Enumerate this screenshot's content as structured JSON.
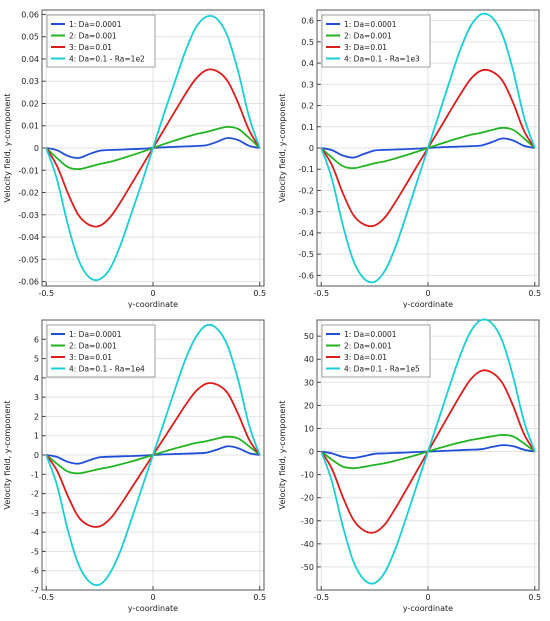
{
  "chart_data": [
    {
      "type": "line",
      "xlabel": "y-coordinate",
      "ylabel": "Velocity field, y-component",
      "xlim": [
        -0.52,
        0.52
      ],
      "ylim": [
        -0.062,
        0.062
      ],
      "xticks": [
        "-0.5",
        "0",
        "0.5"
      ],
      "yticks": [
        "0.06",
        "0.05",
        "0.04",
        "0.03",
        "0.02",
        "0.01",
        "0",
        "-0.01",
        "-0.02",
        "-0.03",
        "-0.04",
        "-0.05",
        "-0.06"
      ],
      "legend_position": "top-left",
      "grid": true,
      "series": [
        {
          "name": "1: Da=0.0001",
          "color": "#1f4fd8",
          "x": [
            -0.5,
            -0.45,
            -0.4,
            -0.35,
            -0.3,
            -0.25,
            -0.2,
            -0.15,
            -0.1,
            -0.05,
            0,
            0.05,
            0.1,
            0.15,
            0.2,
            0.25,
            0.3,
            0.35,
            0.4,
            0.45,
            0.5
          ],
          "y": [
            0,
            -0.001,
            -0.0035,
            -0.0045,
            -0.0028,
            -0.0012,
            -0.0009,
            -0.0007,
            -0.0005,
            -0.0003,
            0,
            0.0003,
            0.0005,
            0.0007,
            0.0009,
            0.0012,
            0.0028,
            0.0045,
            0.0035,
            0.001,
            0
          ]
        },
        {
          "name": "2: Da=0.001",
          "color": "#22b422",
          "x": [
            -0.5,
            -0.45,
            -0.4,
            -0.35,
            -0.3,
            -0.25,
            -0.2,
            -0.15,
            -0.1,
            -0.05,
            0,
            0.05,
            0.1,
            0.15,
            0.2,
            0.25,
            0.3,
            0.35,
            0.4,
            0.45,
            0.5
          ],
          "y": [
            0,
            -0.0045,
            -0.0085,
            -0.0095,
            -0.0085,
            -0.0072,
            -0.0062,
            -0.0048,
            -0.0033,
            -0.0017,
            0,
            0.0017,
            0.0033,
            0.0048,
            0.0062,
            0.0072,
            0.0085,
            0.0095,
            0.0085,
            0.0045,
            0
          ]
        },
        {
          "name": "3: Da=0.01",
          "color": "#dd1c1c",
          "x": [
            -0.5,
            -0.45,
            -0.4,
            -0.35,
            -0.3,
            -0.25,
            -0.2,
            -0.15,
            -0.1,
            -0.05,
            0,
            0.05,
            0.1,
            0.15,
            0.2,
            0.25,
            0.3,
            0.35,
            0.4,
            0.45,
            0.5
          ],
          "y": [
            0,
            -0.008,
            -0.02,
            -0.03,
            -0.0345,
            -0.035,
            -0.031,
            -0.024,
            -0.016,
            -0.008,
            0,
            0.008,
            0.016,
            0.024,
            0.031,
            0.035,
            0.0345,
            0.03,
            0.02,
            0.008,
            0
          ]
        },
        {
          "name": "4: Da=0.1 - Ra=1e2",
          "color": "#19cfd3",
          "x": [
            -0.5,
            -0.45,
            -0.4,
            -0.35,
            -0.3,
            -0.25,
            -0.2,
            -0.15,
            -0.1,
            -0.05,
            0,
            0.05,
            0.1,
            0.15,
            0.2,
            0.25,
            0.3,
            0.35,
            0.4,
            0.45,
            0.5
          ],
          "y": [
            0,
            -0.014,
            -0.034,
            -0.05,
            -0.058,
            -0.059,
            -0.054,
            -0.043,
            -0.029,
            -0.015,
            0,
            0.015,
            0.029,
            0.043,
            0.054,
            0.059,
            0.058,
            0.05,
            0.034,
            0.014,
            0
          ]
        }
      ]
    },
    {
      "type": "line",
      "xlabel": "y-coordinate",
      "ylabel": "Velocity field, y-component",
      "xlim": [
        -0.52,
        0.52
      ],
      "ylim": [
        -0.65,
        0.65
      ],
      "xticks": [
        "-0.5",
        "0",
        "0.5"
      ],
      "yticks": [
        "0.6",
        "0.5",
        "0.4",
        "0.3",
        "0.2",
        "0.1",
        "0",
        "-0.1",
        "-0.2",
        "-0.3",
        "-0.4",
        "-0.5",
        "-0.6"
      ],
      "legend_position": "top-left",
      "grid": true,
      "series": [
        {
          "name": "1: Da=0.0001",
          "color": "#1f4fd8",
          "x": [
            -0.5,
            -0.45,
            -0.4,
            -0.35,
            -0.3,
            -0.25,
            -0.2,
            -0.15,
            -0.1,
            -0.05,
            0,
            0.05,
            0.1,
            0.15,
            0.2,
            0.25,
            0.3,
            0.35,
            0.4,
            0.45,
            0.5
          ],
          "y": [
            0,
            -0.01,
            -0.035,
            -0.045,
            -0.028,
            -0.012,
            -0.009,
            -0.007,
            -0.005,
            -0.003,
            0,
            0.003,
            0.005,
            0.007,
            0.009,
            0.012,
            0.028,
            0.045,
            0.035,
            0.01,
            0
          ]
        },
        {
          "name": "2: Da=0.001",
          "color": "#22b422",
          "x": [
            -0.5,
            -0.45,
            -0.4,
            -0.35,
            -0.3,
            -0.25,
            -0.2,
            -0.15,
            -0.1,
            -0.05,
            0,
            0.05,
            0.1,
            0.15,
            0.2,
            0.25,
            0.3,
            0.35,
            0.4,
            0.45,
            0.5
          ],
          "y": [
            0,
            -0.045,
            -0.085,
            -0.095,
            -0.085,
            -0.072,
            -0.062,
            -0.048,
            -0.033,
            -0.017,
            0,
            0.017,
            0.033,
            0.048,
            0.062,
            0.072,
            0.085,
            0.095,
            0.085,
            0.045,
            0
          ]
        },
        {
          "name": "3: Da=0.01",
          "color": "#dd1c1c",
          "x": [
            -0.5,
            -0.45,
            -0.4,
            -0.35,
            -0.3,
            -0.25,
            -0.2,
            -0.15,
            -0.1,
            -0.05,
            0,
            0.05,
            0.1,
            0.15,
            0.2,
            0.25,
            0.3,
            0.35,
            0.4,
            0.45,
            0.5
          ],
          "y": [
            0,
            -0.08,
            -0.21,
            -0.315,
            -0.36,
            -0.365,
            -0.325,
            -0.25,
            -0.167,
            -0.083,
            0,
            0.083,
            0.167,
            0.25,
            0.325,
            0.365,
            0.36,
            0.315,
            0.21,
            0.08,
            0
          ]
        },
        {
          "name": "4: Da=0.1 - Ra=1e3",
          "color": "#19cfd3",
          "x": [
            -0.5,
            -0.45,
            -0.4,
            -0.35,
            -0.3,
            -0.25,
            -0.2,
            -0.15,
            -0.1,
            -0.05,
            0,
            0.05,
            0.1,
            0.15,
            0.2,
            0.25,
            0.3,
            0.35,
            0.4,
            0.45,
            0.5
          ],
          "y": [
            0,
            -0.145,
            -0.36,
            -0.53,
            -0.615,
            -0.63,
            -0.575,
            -0.46,
            -0.31,
            -0.155,
            0,
            0.155,
            0.31,
            0.46,
            0.575,
            0.63,
            0.615,
            0.53,
            0.36,
            0.145,
            0
          ]
        }
      ]
    },
    {
      "type": "line",
      "xlabel": "y-coordinate",
      "ylabel": "Velocity field, y-component",
      "xlim": [
        -0.52,
        0.52
      ],
      "ylim": [
        -7.0,
        7.0
      ],
      "xticks": [
        "-0.5",
        "0",
        "0.5"
      ],
      "yticks": [
        "6",
        "5",
        "4",
        "3",
        "2",
        "1",
        "0",
        "-1",
        "-2",
        "-3",
        "-4",
        "-5",
        "-6",
        "-7"
      ],
      "legend_position": "top-left",
      "grid": true,
      "series": [
        {
          "name": "1: Da=0.0001",
          "color": "#1f4fd8",
          "x": [
            -0.5,
            -0.45,
            -0.4,
            -0.35,
            -0.3,
            -0.25,
            -0.2,
            -0.15,
            -0.1,
            -0.05,
            0,
            0.05,
            0.1,
            0.15,
            0.2,
            0.25,
            0.3,
            0.35,
            0.4,
            0.45,
            0.5
          ],
          "y": [
            0,
            -0.1,
            -0.35,
            -0.45,
            -0.28,
            -0.12,
            -0.09,
            -0.07,
            -0.05,
            -0.03,
            0,
            0.03,
            0.05,
            0.07,
            0.09,
            0.12,
            0.28,
            0.45,
            0.35,
            0.1,
            0
          ]
        },
        {
          "name": "2: Da=0.001",
          "color": "#22b422",
          "x": [
            -0.5,
            -0.45,
            -0.4,
            -0.35,
            -0.3,
            -0.25,
            -0.2,
            -0.15,
            -0.1,
            -0.05,
            0,
            0.05,
            0.1,
            0.15,
            0.2,
            0.25,
            0.3,
            0.35,
            0.4,
            0.45,
            0.5
          ],
          "y": [
            0,
            -0.45,
            -0.85,
            -0.95,
            -0.85,
            -0.72,
            -0.62,
            -0.48,
            -0.33,
            -0.17,
            0,
            0.17,
            0.33,
            0.48,
            0.62,
            0.72,
            0.85,
            0.95,
            0.85,
            0.45,
            0
          ]
        },
        {
          "name": "3: Da=0.01",
          "color": "#dd1c1c",
          "x": [
            -0.5,
            -0.45,
            -0.4,
            -0.35,
            -0.3,
            -0.25,
            -0.2,
            -0.15,
            -0.1,
            -0.05,
            0,
            0.05,
            0.1,
            0.15,
            0.2,
            0.25,
            0.3,
            0.35,
            0.4,
            0.45,
            0.5
          ],
          "y": [
            0,
            -0.8,
            -2.1,
            -3.2,
            -3.65,
            -3.7,
            -3.3,
            -2.55,
            -1.7,
            -0.85,
            0,
            0.85,
            1.7,
            2.55,
            3.3,
            3.7,
            3.65,
            3.2,
            2.1,
            0.8,
            0
          ]
        },
        {
          "name": "4: Da=0.1 - Ra=1e4",
          "color": "#19cfd3",
          "x": [
            -0.5,
            -0.45,
            -0.4,
            -0.35,
            -0.3,
            -0.25,
            -0.2,
            -0.15,
            -0.1,
            -0.05,
            0,
            0.05,
            0.1,
            0.15,
            0.2,
            0.25,
            0.3,
            0.35,
            0.4,
            0.45,
            0.5
          ],
          "y": [
            0,
            -1.55,
            -3.85,
            -5.65,
            -6.55,
            -6.72,
            -6.1,
            -4.9,
            -3.3,
            -1.65,
            0,
            1.65,
            3.3,
            4.9,
            6.1,
            6.72,
            6.55,
            5.65,
            3.85,
            1.55,
            0
          ]
        }
      ]
    },
    {
      "type": "line",
      "xlabel": "y-coordinate",
      "ylabel": "Velocity field, y-component",
      "xlim": [
        -0.52,
        0.52
      ],
      "ylim": [
        -60,
        57
      ],
      "xticks": [
        "-0.5",
        "0",
        "0.5"
      ],
      "yticks": [
        "50",
        "40",
        "30",
        "20",
        "10",
        "0",
        "-10",
        "-20",
        "-30",
        "-40",
        "-50"
      ],
      "legend_position": "top-left",
      "grid": true,
      "series": [
        {
          "name": "1: Da=0.0001",
          "color": "#1f4fd8",
          "x": [
            -0.5,
            -0.45,
            -0.4,
            -0.35,
            -0.3,
            -0.25,
            -0.2,
            -0.15,
            -0.1,
            -0.05,
            0,
            0.05,
            0.1,
            0.15,
            0.2,
            0.25,
            0.3,
            0.35,
            0.4,
            0.45,
            0.5
          ],
          "y": [
            0,
            -0.8,
            -2.3,
            -2.8,
            -2.0,
            -1.0,
            -0.8,
            -0.6,
            -0.4,
            -0.2,
            0,
            0.2,
            0.4,
            0.6,
            0.8,
            1.0,
            2.0,
            2.8,
            2.3,
            0.8,
            0
          ]
        },
        {
          "name": "2: Da=0.001",
          "color": "#22b422",
          "x": [
            -0.5,
            -0.45,
            -0.4,
            -0.35,
            -0.3,
            -0.25,
            -0.2,
            -0.15,
            -0.1,
            -0.05,
            0,
            0.05,
            0.1,
            0.15,
            0.2,
            0.25,
            0.3,
            0.35,
            0.4,
            0.45,
            0.5
          ],
          "y": [
            0,
            -3.5,
            -6.5,
            -7.2,
            -6.6,
            -5.8,
            -5.0,
            -3.9,
            -2.7,
            -1.4,
            0,
            1.4,
            2.7,
            3.9,
            5.0,
            5.8,
            6.6,
            7.2,
            6.5,
            3.5,
            0
          ]
        },
        {
          "name": "3: Da=0.01",
          "color": "#dd1c1c",
          "x": [
            -0.5,
            -0.45,
            -0.4,
            -0.35,
            -0.3,
            -0.25,
            -0.2,
            -0.15,
            -0.1,
            -0.05,
            0,
            0.05,
            0.1,
            0.15,
            0.2,
            0.25,
            0.3,
            0.35,
            0.4,
            0.45,
            0.5
          ],
          "y": [
            0,
            -7.5,
            -19.5,
            -29.5,
            -34.2,
            -35,
            -31.3,
            -24.2,
            -16.2,
            -8.1,
            0,
            8.1,
            16.2,
            24.2,
            31.3,
            35,
            34.2,
            29.5,
            19.5,
            7.5,
            0
          ]
        },
        {
          "name": "4: Da=0.1 - Ra=1e5",
          "color": "#19cfd3",
          "x": [
            -0.5,
            -0.45,
            -0.4,
            -0.35,
            -0.3,
            -0.25,
            -0.2,
            -0.15,
            -0.1,
            -0.05,
            0,
            0.05,
            0.1,
            0.15,
            0.2,
            0.25,
            0.3,
            0.35,
            0.4,
            0.45,
            0.5
          ],
          "y": [
            0,
            -13,
            -32,
            -47.5,
            -55.5,
            -57,
            -52,
            -41.5,
            -28,
            -14,
            0,
            14,
            28,
            41.5,
            52,
            57,
            55.5,
            47.5,
            32,
            13,
            0
          ]
        }
      ]
    }
  ]
}
